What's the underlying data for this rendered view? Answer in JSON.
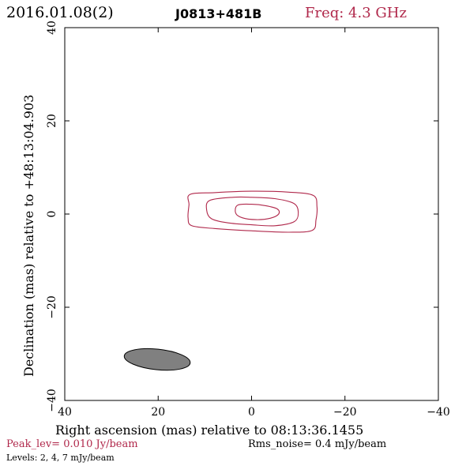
{
  "header": {
    "date": "2016.01.08(2)",
    "source": "J0813+481B",
    "freq": "Freq: 4.3 GHz"
  },
  "footer": {
    "peak": "Peak_lev=  0.010 Jy/beam",
    "rms": "Rms_noise=   0.4 mJy/beam",
    "levels": "Levels:    2,    4,    7 mJy/beam"
  },
  "colors": {
    "accent": "#b0284b",
    "beam": "#808080",
    "axis": "#000000"
  },
  "chart_data": {
    "type": "contour",
    "xlabel": "Right ascension (mas) relative to 08:13:36.1455",
    "ylabel": "Declination (mas) relative to +48:13:04.903",
    "xlim": [
      40,
      -40
    ],
    "ylim": [
      -40,
      40
    ],
    "x_ticks": [
      40,
      20,
      0,
      -20,
      -40
    ],
    "x_tick_labels": [
      "40",
      "20",
      "0",
      "−20",
      "−40"
    ],
    "y_ticks": [
      -40,
      -20,
      0,
      20,
      40
    ],
    "y_tick_labels": [
      "−40",
      "−20",
      "0",
      "20",
      "40"
    ],
    "contour_levels_mJy": [
      2,
      4,
      7
    ],
    "contours": [
      {
        "level": 2,
        "points": [
          [
            13.2,
            4.2
          ],
          [
            8,
            4.6
          ],
          [
            0,
            4.9
          ],
          [
            -8,
            4.7
          ],
          [
            -13.2,
            4.0
          ],
          [
            -14,
            1.6
          ],
          [
            -13.8,
            -1.2
          ],
          [
            -13,
            -3.5
          ],
          [
            -8,
            -3.9
          ],
          [
            0,
            -3.6
          ],
          [
            8,
            -3.1
          ],
          [
            12.8,
            -2.5
          ],
          [
            13.6,
            -0.8
          ],
          [
            13.4,
            2.0
          ]
        ]
      },
      {
        "level": 4,
        "points": [
          [
            9,
            2.9
          ],
          [
            4,
            3.6
          ],
          [
            0,
            3.6
          ],
          [
            -5,
            3.3
          ],
          [
            -9,
            2.3
          ],
          [
            -10,
            0.5
          ],
          [
            -9.2,
            -1.6
          ],
          [
            -5,
            -2.5
          ],
          [
            0,
            -2.3
          ],
          [
            5,
            -1.9
          ],
          [
            8.6,
            -1.0
          ],
          [
            9.6,
            0.8
          ]
        ]
      },
      {
        "level": 7,
        "points": [
          [
            3,
            1.9
          ],
          [
            0,
            2.1
          ],
          [
            -3,
            1.8
          ],
          [
            -5.5,
            1.1
          ],
          [
            -5.8,
            0.0
          ],
          [
            -4,
            -0.9
          ],
          [
            -1,
            -1.2
          ],
          [
            2,
            -0.8
          ],
          [
            3.4,
            0.2
          ]
        ]
      }
    ],
    "beam": {
      "center": [
        20.2,
        -31.2
      ],
      "major": 14.2,
      "minor": 4.4,
      "pa_deg": -6
    }
  }
}
